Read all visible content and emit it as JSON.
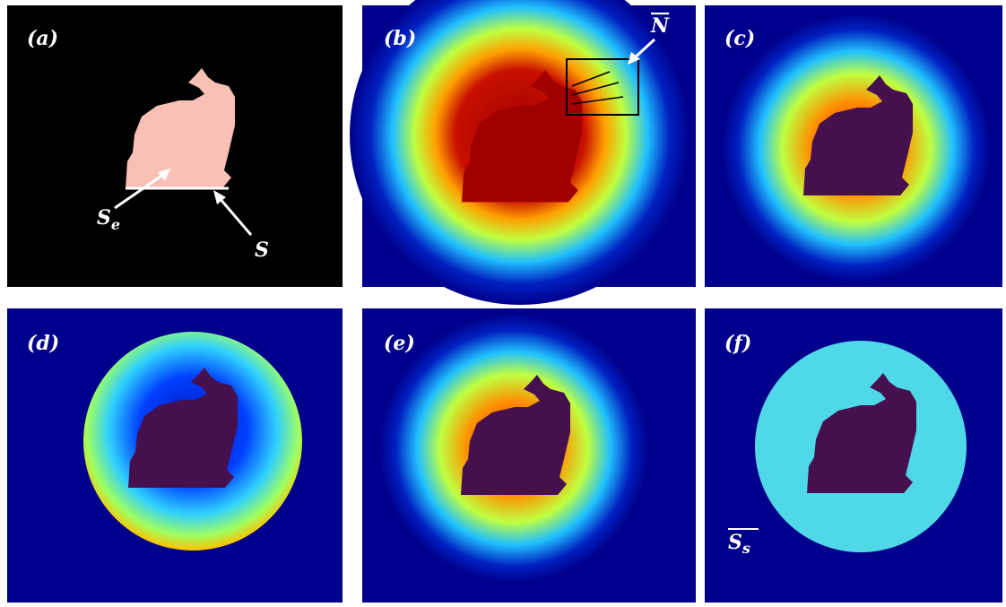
{
  "panels": [
    {
      "label": "(a)"
    },
    {
      "label": "(b)"
    },
    {
      "label": "(c)"
    },
    {
      "label": "(d)"
    },
    {
      "label": "(e)"
    },
    {
      "label": "(f)"
    }
  ],
  "annotations": {
    "s_e": {
      "base": "S",
      "sub": "e"
    },
    "s": "S",
    "n": "N",
    "s_s": {
      "base": "S",
      "sub": "s"
    }
  }
}
